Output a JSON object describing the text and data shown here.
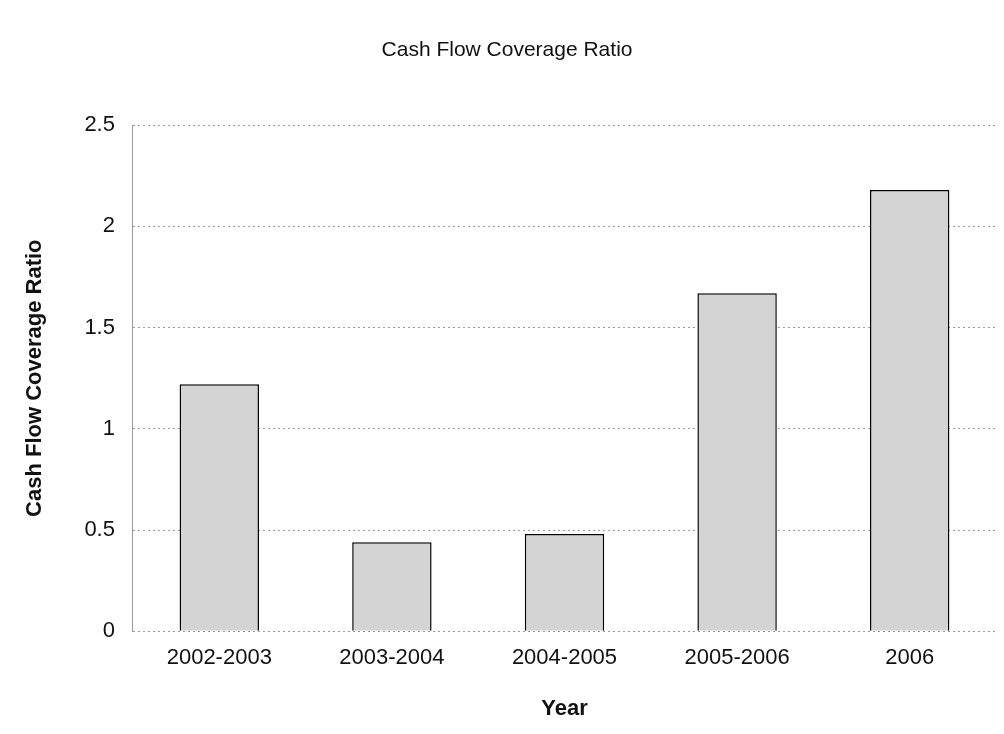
{
  "chart_data": {
    "type": "bar",
    "title": "Cash Flow Coverage Ratio",
    "xlabel": "Year",
    "ylabel": "Cash Flow Coverage Ratio",
    "categories": [
      "2002-2003",
      "2003-2004",
      "2004-2005",
      "2005-2006",
      "2006"
    ],
    "values": [
      1.22,
      0.44,
      0.48,
      1.67,
      2.18
    ],
    "color": "#d4d4d4",
    "ylim": [
      0,
      2.5
    ],
    "yticks": [
      0,
      0.5,
      1,
      1.5,
      2,
      2.5
    ],
    "grid": "y"
  }
}
